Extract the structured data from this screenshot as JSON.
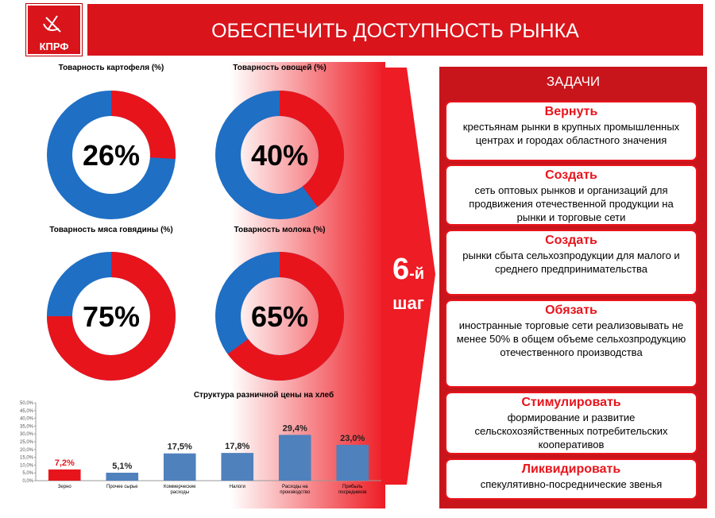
{
  "header": {
    "logo": "КПРФ",
    "title": "ОБЕСПЕЧИТЬ ДОСТУПНОСТЬ РЫНКА"
  },
  "chart_data": [
    {
      "type": "pie",
      "title": "Товарность картофеля (%)",
      "values": [
        26
      ],
      "value_labels": [
        "26%"
      ],
      "color": "#e8141c",
      "track_color": "#1f6fc4"
    },
    {
      "type": "pie",
      "title": "Товарность овощей (%)",
      "values": [
        40
      ],
      "value_labels": [
        "40%"
      ],
      "color": "#e8141c",
      "track_color": "#1f6fc4"
    },
    {
      "type": "pie",
      "title": "Товарность мяса говядины (%)",
      "values": [
        75
      ],
      "value_labels": [
        "75%"
      ],
      "color": "#e8141c",
      "track_color": "#1f6fc4"
    },
    {
      "type": "pie",
      "title": "Товарность молока (%)",
      "values": [
        65
      ],
      "value_labels": [
        "65%"
      ],
      "color": "#e8141c",
      "track_color": "#1f6fc4"
    },
    {
      "type": "bar",
      "title": "Структура разничной цены на хлеб",
      "categories": [
        "Зерно",
        "Прочее сырье",
        "Коммерческие расходы",
        "Налоги",
        "Расходы на производство",
        "Прибыль посредников"
      ],
      "values": [
        7.2,
        5.1,
        17.5,
        17.8,
        29.4,
        23.0
      ],
      "value_labels": [
        "7,2%",
        "5,1%",
        "17,5%",
        "17,8%",
        "29,4%",
        "23,0%"
      ],
      "colors": [
        "#e8141c",
        "#4f81bd",
        "#4f81bd",
        "#4f81bd",
        "#4f81bd",
        "#4f81bd"
      ],
      "ylim": [
        0,
        50
      ],
      "yticks": [
        {
          "value": 0,
          "label": "0,0%"
        },
        {
          "value": 5,
          "label": "5,0%"
        },
        {
          "value": 10,
          "label": "10,0%"
        },
        {
          "value": 15,
          "label": "15,0%"
        },
        {
          "value": 20,
          "label": "20,0%"
        },
        {
          "value": 25,
          "label": "25,0%"
        },
        {
          "value": 30,
          "label": "30,0%"
        },
        {
          "value": 35,
          "label": "35,0%"
        },
        {
          "value": 40,
          "label": "40,0%"
        },
        {
          "value": 45,
          "label": "45,0%"
        },
        {
          "value": 50,
          "label": "50,0%"
        }
      ]
    }
  ],
  "step": {
    "number": "6",
    "suffix": "-й",
    "word": "шаг"
  },
  "tasks": {
    "title": "ЗАДАЧИ",
    "items": [
      {
        "verb": "Вернуть",
        "text": "крестьянам рынки в крупных промышленных центрах и городах областного значения"
      },
      {
        "verb": "Создать",
        "text": "сеть оптовых рынков и организаций для продвижения отечественной продукции на рынки и торговые сети"
      },
      {
        "verb": "Создать",
        "text": "рынки сбыта сельхозпродукции для малого и среднего предпринимательства"
      },
      {
        "verb": "Обязать",
        "text": "иностранные торговые сети реализовывать не менее 50% в общем объеме сельхозпродукцию отечественного производства"
      },
      {
        "verb": "Стимулировать",
        "text": "формирование и развитие сельскохозяйственных потребительских кооперативов"
      },
      {
        "verb": "Ликвидировать",
        "text": "спекулятивно-посреднические звенья"
      }
    ]
  }
}
